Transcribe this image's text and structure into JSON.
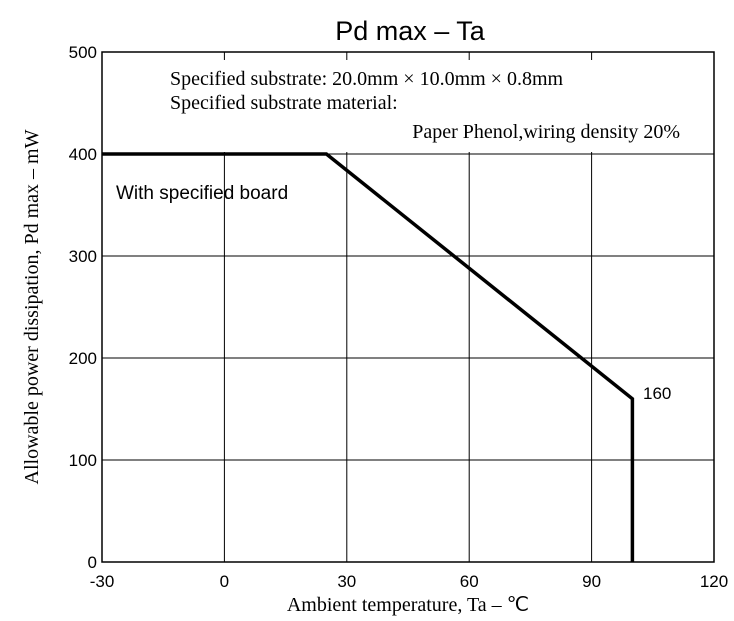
{
  "chart_data": {
    "type": "line",
    "title": "Pd max – Ta",
    "xlabel": "Ambient temperature, Ta – ℃",
    "ylabel": "Allowable power dissipation, Pd max – mW",
    "xlim": [
      -30,
      120
    ],
    "ylim": [
      0,
      500
    ],
    "x_ticks": [
      "-30",
      "0",
      "30",
      "60",
      "90",
      "120"
    ],
    "y_ticks": [
      "0",
      "100",
      "200",
      "300",
      "400",
      "500"
    ],
    "x_tick_values": [
      -30,
      0,
      30,
      60,
      90,
      120
    ],
    "y_tick_values": [
      0,
      100,
      200,
      300,
      400,
      500
    ],
    "grid": true,
    "series": [
      {
        "x": [
          -30,
          25,
          100,
          100
        ],
        "y": [
          400,
          400,
          160,
          0
        ]
      }
    ],
    "annotations": {
      "board_label": "With specified board",
      "end_value_label": "160",
      "note_line1": "Specified substrate: 20.0mm × 10.0mm × 0.8mm",
      "note_line2": "Specified substrate material:",
      "note_line3": "Paper Phenol,wiring density 20%"
    }
  }
}
